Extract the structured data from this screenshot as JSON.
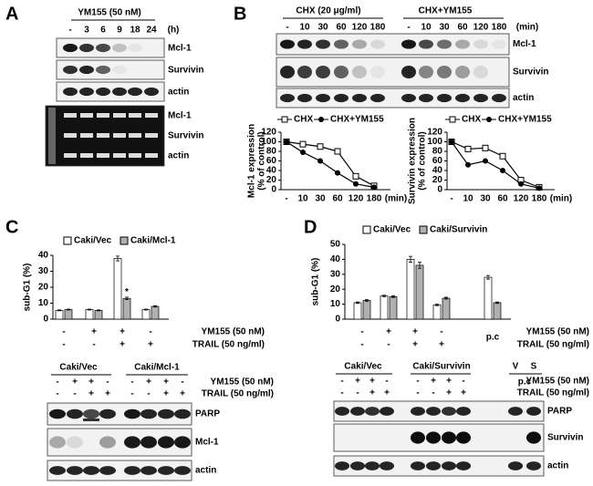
{
  "panels": {
    "A": {
      "label": "A",
      "treatment": "YM155 (50 nM)",
      "lanes": [
        "-",
        "3",
        "6",
        "9",
        "18",
        "24"
      ],
      "unit": "(h)",
      "western_rows": [
        "Mcl-1",
        "Survivin",
        "actin"
      ],
      "pcr_rows": [
        "Mcl-1",
        "Survivin",
        "actin"
      ]
    },
    "B": {
      "label": "B",
      "groups": [
        "CHX (20 μg/ml)",
        "CHX+YM155"
      ],
      "lanes": [
        "-",
        "10",
        "30",
        "60",
        "120",
        "180"
      ],
      "unit": "(min)",
      "rows": [
        "Mcl-1",
        "Survivin",
        "actin"
      ]
    },
    "C": {
      "label": "C",
      "groups": [
        "Caki/Vec",
        "Caki/Mcl-1"
      ],
      "treatments": [
        {
          "label": "YM155 (50 nM)",
          "lanes": [
            "-",
            "+",
            "+",
            "-",
            "-",
            "+",
            "+",
            "-"
          ]
        },
        {
          "label": "TRAIL (50 ng/ml)",
          "lanes": [
            "-",
            "-",
            "+",
            "+",
            "-",
            "-",
            "+",
            "+"
          ]
        }
      ],
      "rows": [
        "PARP",
        "Mcl-1",
        "actin"
      ]
    },
    "D": {
      "label": "D",
      "groups": [
        "Caki/Vec",
        "Caki/Survivin",
        "V",
        "S"
      ],
      "treatments": [
        {
          "label": "YM155 (50 nM)",
          "lanes": [
            "-",
            "+",
            "+",
            "-",
            "-",
            "+",
            "+",
            "-"
          ]
        },
        {
          "label": "TRAIL (50 ng/ml)",
          "lanes": [
            "-",
            "-",
            "+",
            "+",
            "-",
            "-",
            "+",
            "+"
          ]
        }
      ],
      "control": "p.c",
      "rows": [
        "PARP",
        "Survivin",
        "actin"
      ]
    }
  },
  "chart_data": [
    {
      "type": "line",
      "ylabel": [
        "Mcl-1 expression",
        "(% of control)"
      ],
      "categories": [
        "-",
        "10",
        "30",
        "60",
        "120",
        "180"
      ],
      "xlabel": "(min)",
      "ylim": [
        0,
        120
      ],
      "yticks": [
        0,
        20,
        40,
        60,
        80,
        100,
        120
      ],
      "series": [
        {
          "name": "CHX",
          "color": "#000000",
          "marker": "square-open",
          "values": [
            100,
            95,
            90,
            80,
            28,
            8
          ]
        },
        {
          "name": "CHX+YM155",
          "color": "#000000",
          "marker": "circle",
          "values": [
            100,
            78,
            60,
            35,
            12,
            5
          ]
        }
      ]
    },
    {
      "type": "line",
      "ylabel": [
        "Survivin expression",
        "(% of control)"
      ],
      "categories": [
        "-",
        "10",
        "30",
        "60",
        "120",
        "180"
      ],
      "xlabel": "(min)",
      "ylim": [
        0,
        120
      ],
      "yticks": [
        0,
        20,
        40,
        60,
        80,
        100,
        120
      ],
      "series": [
        {
          "name": "CHX",
          "color": "#000000",
          "marker": "square-open",
          "values": [
            100,
            85,
            87,
            70,
            20,
            5
          ]
        },
        {
          "name": "CHX+YM155",
          "color": "#000000",
          "marker": "circle",
          "values": [
            100,
            52,
            60,
            40,
            12,
            3
          ]
        }
      ]
    },
    {
      "type": "bar",
      "ylabel": "sub-G1 (%)",
      "ylim": [
        0,
        40
      ],
      "yticks": [
        0,
        10,
        20,
        30,
        40
      ],
      "annotation": "*",
      "series": [
        {
          "name": "Caki/Vec",
          "color": "#ffffff",
          "values": [
            5.5,
            6,
            38,
            6
          ],
          "errors": [
            0.3,
            0.3,
            1.5,
            0.3
          ]
        },
        {
          "name": "Caki/Mcl-1",
          "color": "#b0b0b0",
          "values": [
            6,
            5.5,
            13,
            8
          ],
          "errors": [
            0.3,
            0.3,
            0.8,
            0.4
          ]
        }
      ],
      "conditions": [
        {
          "label": "YM155 (50 nM)",
          "values": [
            "-",
            "+",
            "+",
            "-"
          ]
        },
        {
          "label": "TRAIL (50 ng/ml)",
          "values": [
            "-",
            "-",
            "+",
            "+"
          ]
        }
      ]
    },
    {
      "type": "bar",
      "ylabel": "sub-G1 (%)",
      "ylim": [
        0,
        50
      ],
      "yticks": [
        0,
        10,
        20,
        30,
        40,
        50
      ],
      "series": [
        {
          "name": "Caki/Vec",
          "color": "#ffffff",
          "values": [
            11,
            15.5,
            40,
            9.5,
            28
          ],
          "errors": [
            0.5,
            0.5,
            2,
            0.5,
            1.2
          ]
        },
        {
          "name": "Caki/Survivin",
          "color": "#b0b0b0",
          "values": [
            12.5,
            15,
            36,
            14,
            11
          ],
          "errors": [
            0.5,
            0.5,
            2,
            0.6,
            0.5
          ]
        }
      ],
      "conditions": [
        {
          "label": "YM155 (50 nM)",
          "values": [
            "-",
            "+",
            "+",
            "-",
            "p.c"
          ]
        },
        {
          "label": "TRAIL (50 ng/ml)",
          "values": [
            "-",
            "-",
            "+",
            "+"
          ]
        }
      ]
    }
  ]
}
